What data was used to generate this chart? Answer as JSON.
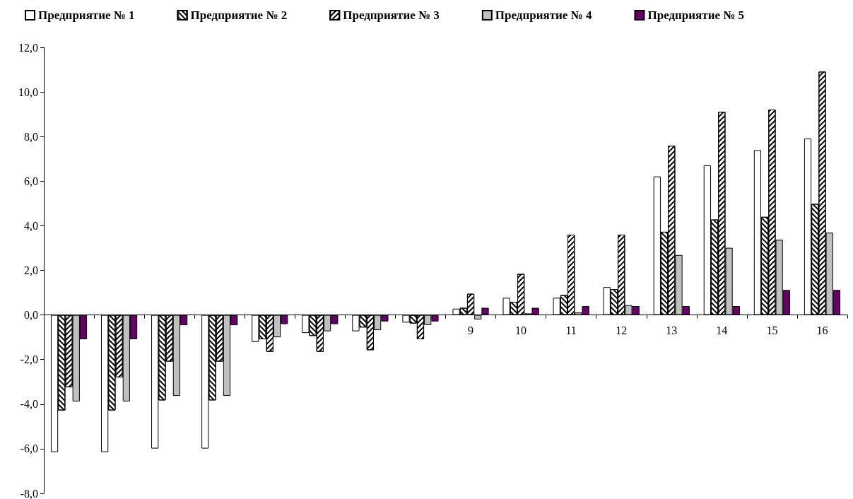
{
  "chart_data": {
    "type": "bar",
    "categories": [
      null,
      null,
      null,
      null,
      null,
      null,
      null,
      null,
      "9",
      "10",
      "11",
      "12",
      "13",
      "14",
      "15",
      "16"
    ],
    "series": [
      {
        "name": "Предприятие № 1",
        "color": "#ffffff",
        "values": [
          -6.15,
          -6.15,
          -5.99,
          -5.99,
          -1.21,
          -0.81,
          -0.73,
          -0.34,
          0.28,
          0.77,
          0.77,
          1.25,
          6.21,
          6.71,
          7.39,
          7.91
        ]
      },
      {
        "name": "Предприятие № 2",
        "color": "#ffffff",
        "values": [
          -4.28,
          -4.28,
          -3.83,
          -3.83,
          -1.09,
          -0.94,
          -0.56,
          -0.38,
          0.32,
          0.59,
          0.89,
          1.16,
          3.73,
          4.28,
          4.4,
          4.98
        ]
      },
      {
        "name": "Предприятие № 3",
        "color": "#ffffff",
        "values": [
          -3.24,
          -2.8,
          -2.09,
          -2.09,
          -1.65,
          -1.65,
          -1.58,
          -1.09,
          0.95,
          1.84,
          3.6,
          3.6,
          7.59,
          9.11,
          9.21,
          10.91
        ]
      },
      {
        "name": "Предприятие № 4",
        "color": "#c0c0c0",
        "values": [
          -3.88,
          -3.88,
          -3.63,
          -3.63,
          -1.0,
          -0.73,
          -0.68,
          -0.45,
          -0.2,
          0.07,
          0.11,
          0.44,
          2.69,
          3.01,
          3.37,
          3.69
        ]
      },
      {
        "name": "Предприятие № 5",
        "color": "#660066",
        "values": [
          -1.09,
          -1.09,
          -0.46,
          -0.46,
          -0.41,
          -0.41,
          -0.29,
          -0.29,
          0.32,
          0.32,
          0.4,
          0.4,
          0.4,
          0.4,
          1.12,
          1.12
        ]
      }
    ],
    "ylim": [
      -8,
      12
    ],
    "yticks": [
      {
        "value": -8,
        "label": "-8,0"
      },
      {
        "value": -6,
        "label": "-6,0"
      },
      {
        "value": -4,
        "label": "-4,0"
      },
      {
        "value": -2,
        "label": "-2,0"
      },
      {
        "value": 0,
        "label": "0,0"
      },
      {
        "value": 2,
        "label": "2,0"
      },
      {
        "value": 4,
        "label": "4,0"
      },
      {
        "value": 6,
        "label": "6,0"
      },
      {
        "value": 8,
        "label": "8,0"
      },
      {
        "value": 10,
        "label": "10,0"
      },
      {
        "value": 12,
        "label": "12,0"
      }
    ],
    "grid": false,
    "legend": "top"
  }
}
